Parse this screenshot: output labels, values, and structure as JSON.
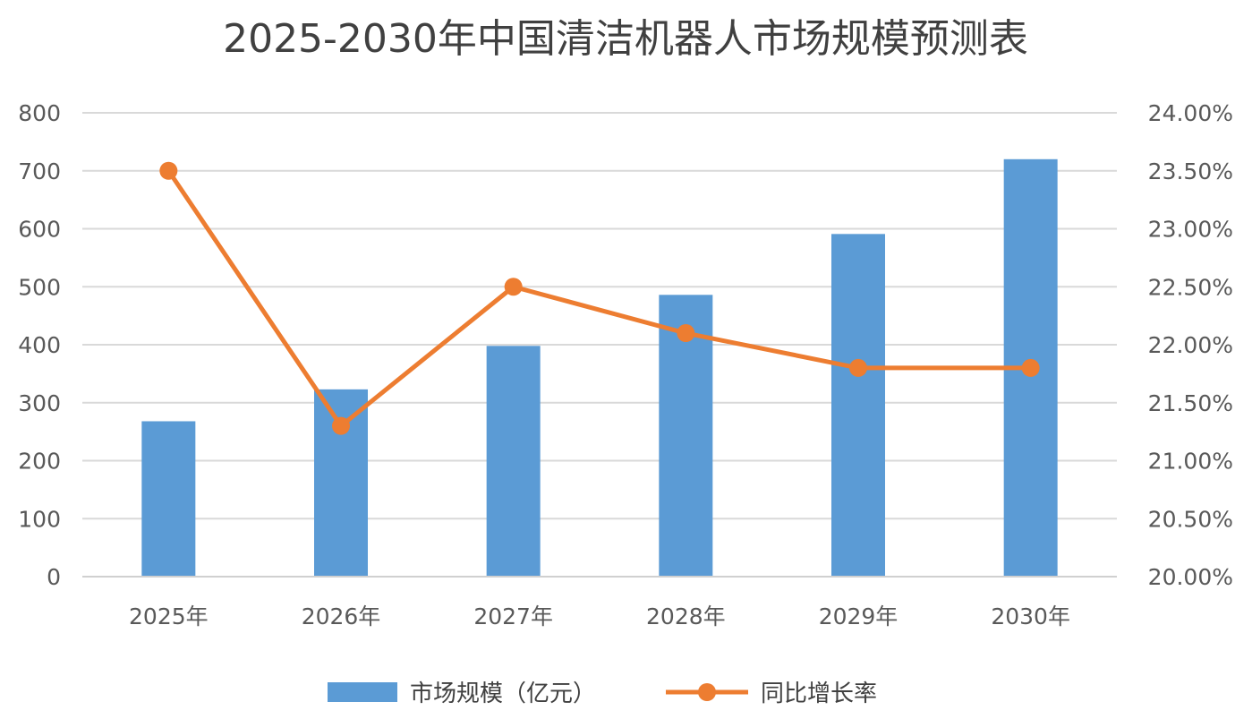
{
  "chart_data": {
    "type": "bar",
    "title": "2025-2030年中国清洁机器人市场规模预测表",
    "categories": [
      "2025年",
      "2026年",
      "2027年",
      "2028年",
      "2029年",
      "2030年"
    ],
    "series": [
      {
        "name": "市场规模（亿元）",
        "type": "bar",
        "axis": "left",
        "color": "#5B9BD5",
        "values": [
          268,
          323,
          398,
          486,
          591,
          720
        ]
      },
      {
        "name": "同比增长率",
        "type": "line",
        "axis": "right",
        "color": "#ED7D31",
        "values": [
          23.5,
          21.3,
          22.5,
          22.1,
          21.8,
          21.8
        ]
      }
    ],
    "y_left": {
      "ylim": [
        0,
        800
      ],
      "ticks": [
        "0",
        "100",
        "200",
        "300",
        "400",
        "500",
        "600",
        "700",
        "800"
      ]
    },
    "y_right": {
      "ylim": [
        20.0,
        24.0
      ],
      "ticks": [
        "20.00%",
        "20.50%",
        "21.00%",
        "21.50%",
        "22.00%",
        "22.50%",
        "23.00%",
        "23.50%",
        "24.00%"
      ]
    },
    "grid": true,
    "legend_position": "bottom"
  }
}
